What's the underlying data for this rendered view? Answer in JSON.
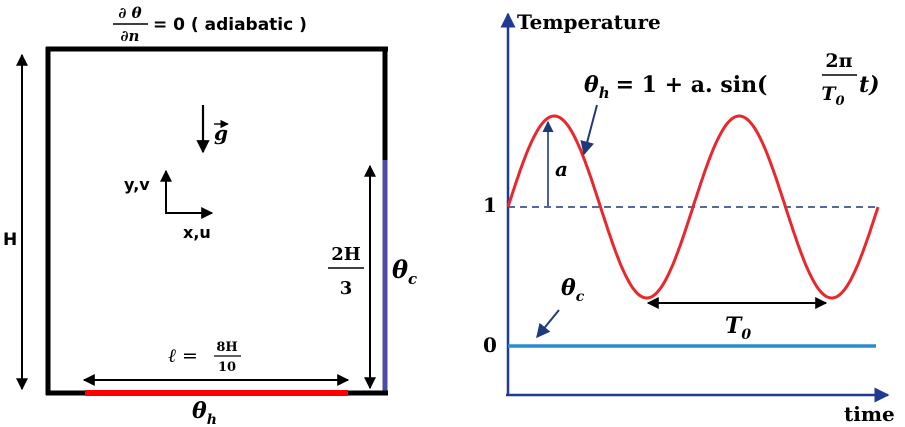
{
  "cavity": {
    "top_condition": {
      "partial_num": "∂ θ",
      "partial_den": "∂n",
      "equals_text": "= 0 ( adiabatic )"
    },
    "height_label": "H",
    "gravity_label": "g",
    "y_axis_label": "y,v",
    "x_axis_label": "x,u",
    "heater_length": {
      "lhs": "ℓ =",
      "num": "8H",
      "den": "10"
    },
    "heater_label": {
      "main": "θ",
      "sub": "h"
    },
    "cold_wall_height": {
      "num": "2H",
      "den": "3"
    },
    "cold_label": {
      "main": "θ",
      "sub": "c"
    },
    "colors": {
      "wall": "#000000",
      "heater": "#ff0000",
      "cold_wall": "#4b4ba8"
    }
  },
  "chart": {
    "y_axis_title": "Temperature",
    "x_axis_title": "time",
    "equation": {
      "lhs_main": "θ",
      "lhs_sub": "h",
      "rhs_prefix": "= 1 + a. sin(",
      "frac_num": "2π",
      "frac_den_main": "T",
      "frac_den_sub": "0",
      "rhs_suffix": "t)"
    },
    "tick_1": "1",
    "tick_0": "0",
    "amplitude_label": "a",
    "period_label": {
      "main": "T",
      "sub": "0"
    },
    "cold_label": {
      "main": "θ",
      "sub": "c"
    },
    "colors": {
      "axis": "#1f3a93",
      "hot_curve": "#e8282d",
      "cold_line": "#2b8ad1",
      "mean_line": "#1f3a7a"
    }
  },
  "chart_data": {
    "type": "line",
    "title": "",
    "xlabel": "time",
    "ylabel": "Temperature",
    "series": [
      {
        "name": "θh",
        "function": "1 + a·sin(2π t / T0)",
        "periods_shown": 2
      },
      {
        "name": "θc",
        "constant": 0
      }
    ],
    "mean_value": 1
  }
}
